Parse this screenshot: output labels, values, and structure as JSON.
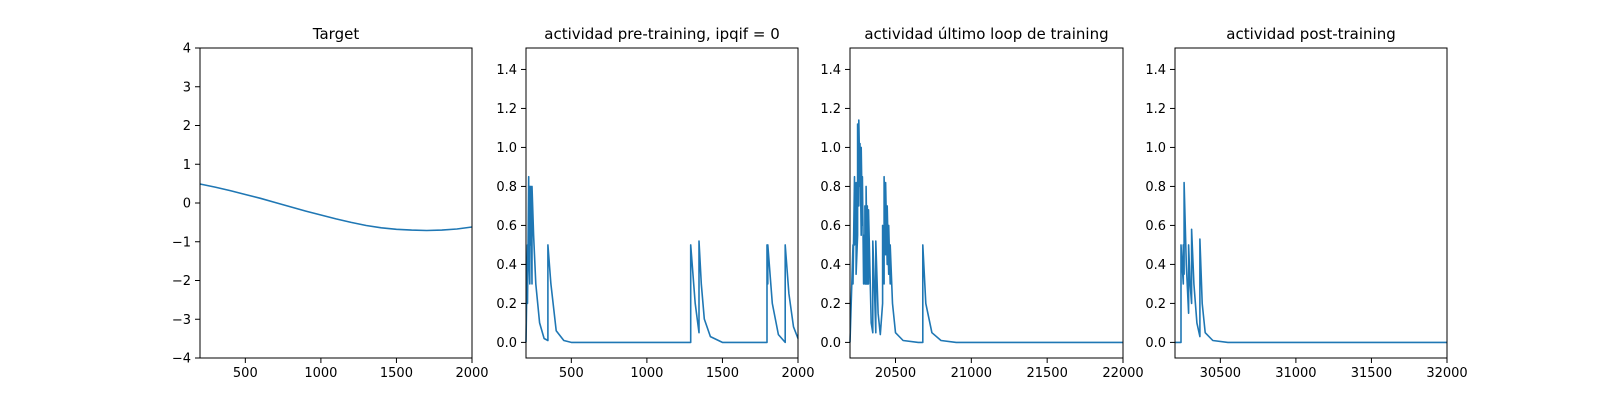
{
  "chart_data": [
    {
      "type": "line",
      "title": "Target",
      "xlabel": "",
      "ylabel": "",
      "xlim": [
        200,
        2000
      ],
      "ylim": [
        -4,
        4
      ],
      "xticks": [
        500,
        1000,
        1500,
        2000
      ],
      "xtick_labels": [
        "500",
        "1000",
        "1500",
        "2000"
      ],
      "yticks": [
        -4,
        -3,
        -2,
        -1,
        0,
        1,
        2,
        3,
        4
      ],
      "ytick_labels": [
        "−4",
        "−3",
        "−2",
        "−1",
        "0",
        "1",
        "2",
        "3",
        "4"
      ],
      "grid": false,
      "series": [
        {
          "color": "#1f77b4",
          "x": [
            200,
            300,
            400,
            500,
            600,
            700,
            800,
            900,
            1000,
            1100,
            1200,
            1300,
            1400,
            1500,
            1600,
            1700,
            1800,
            1900,
            2000
          ],
          "y": [
            0.49,
            0.41,
            0.32,
            0.22,
            0.12,
            0.01,
            -0.1,
            -0.21,
            -0.31,
            -0.41,
            -0.5,
            -0.58,
            -0.64,
            -0.68,
            -0.7,
            -0.71,
            -0.7,
            -0.67,
            -0.62
          ]
        }
      ]
    },
    {
      "type": "line",
      "title": "actividad pre-training, ipqif = 0",
      "xlabel": "",
      "ylabel": "",
      "xlim": [
        200,
        2000
      ],
      "ylim": [
        -0.08,
        1.51
      ],
      "xticks": [
        500,
        1000,
        1500,
        2000
      ],
      "xtick_labels": [
        "500",
        "1000",
        "1500",
        "2000"
      ],
      "yticks": [
        0,
        0.2,
        0.4,
        0.6,
        0.8,
        1.0,
        1.2,
        1.4
      ],
      "ytick_labels": [
        "0.0",
        "0.2",
        "0.4",
        "0.6",
        "0.8",
        "1.0",
        "1.2",
        "1.4"
      ],
      "grid": false,
      "series": [
        {
          "color": "#1f77b4",
          "x": [
            200,
            210,
            210,
            218,
            218,
            225,
            225,
            232,
            232,
            240,
            240,
            250,
            265,
            290,
            320,
            345,
            345,
            365,
            400,
            450,
            500,
            1290,
            1290,
            1320,
            1345,
            1345,
            1360,
            1380,
            1420,
            1500,
            1795,
            1795,
            1800,
            1800,
            1830,
            1870,
            1915,
            1915,
            1940,
            1970,
            2000
          ],
          "y": [
            0,
            0.5,
            0.2,
            0.85,
            0.5,
            0.3,
            0.8,
            0.5,
            0.8,
            0.3,
            0.8,
            0.55,
            0.3,
            0.1,
            0.02,
            0.01,
            0.5,
            0.3,
            0.06,
            0.01,
            0.0,
            0.0,
            0.5,
            0.2,
            0.05,
            0.52,
            0.3,
            0.12,
            0.03,
            0.0,
            0.0,
            0.5,
            0.3,
            0.5,
            0.2,
            0.04,
            0.0,
            0.5,
            0.25,
            0.08,
            0.02
          ]
        }
      ]
    },
    {
      "type": "line",
      "title": "actividad último loop de training",
      "xlabel": "",
      "ylabel": "",
      "xlim": [
        20200,
        22000
      ],
      "ylim": [
        -0.08,
        1.51
      ],
      "xticks": [
        20500,
        21000,
        21500,
        22000
      ],
      "xtick_labels": [
        "20500",
        "21000",
        "21500",
        "22000"
      ],
      "yticks": [
        0,
        0.2,
        0.4,
        0.6,
        0.8,
        1.0,
        1.2,
        1.4
      ],
      "ytick_labels": [
        "0.0",
        "0.2",
        "0.4",
        "0.6",
        "0.8",
        "1.0",
        "1.2",
        "1.4"
      ],
      "grid": false,
      "series": [
        {
          "color": "#1f77b4",
          "x": [
            20200,
            20220,
            20220,
            20230,
            20230,
            20240,
            20240,
            20250,
            20250,
            20258,
            20258,
            20266,
            20266,
            20274,
            20274,
            20282,
            20282,
            20290,
            20290,
            20298,
            20298,
            20306,
            20306,
            20314,
            20314,
            20322,
            20322,
            20340,
            20350,
            20350,
            20360,
            20370,
            20370,
            20385,
            20400,
            20415,
            20415,
            20425,
            20425,
            20435,
            20435,
            20445,
            20445,
            20455,
            20455,
            20465,
            20465,
            20480,
            20500,
            20550,
            20650,
            20680,
            20680,
            20700,
            20740,
            20800,
            20900,
            22000
          ],
          "y": [
            0.0,
            0.5,
            0.3,
            0.85,
            0.5,
            0.82,
            0.35,
            0.55,
            1.12,
            0.7,
            1.14,
            0.8,
            1.02,
            0.55,
            1.0,
            0.6,
            0.85,
            0.3,
            0.55,
            0.3,
            0.7,
            0.3,
            0.8,
            0.3,
            0.7,
            0.3,
            0.68,
            0.1,
            0.05,
            0.52,
            0.3,
            0.05,
            0.52,
            0.15,
            0.04,
            0.2,
            0.6,
            0.3,
            0.85,
            0.45,
            0.82,
            0.4,
            0.7,
            0.35,
            0.6,
            0.3,
            0.5,
            0.2,
            0.05,
            0.01,
            0.0,
            0.0,
            0.5,
            0.2,
            0.05,
            0.01,
            0.0,
            0.0
          ]
        }
      ]
    },
    {
      "type": "line",
      "title": "actividad post-training",
      "xlabel": "",
      "ylabel": "",
      "xlim": [
        30200,
        32000
      ],
      "ylim": [
        -0.08,
        1.51
      ],
      "xticks": [
        30500,
        31000,
        31500,
        32000
      ],
      "xtick_labels": [
        "30500",
        "31000",
        "31500",
        "32000"
      ],
      "yticks": [
        0,
        0.2,
        0.4,
        0.6,
        0.8,
        1.0,
        1.2,
        1.4
      ],
      "ytick_labels": [
        "0.0",
        "0.2",
        "0.4",
        "0.6",
        "0.8",
        "1.0",
        "1.2",
        "1.4"
      ],
      "grid": false,
      "series": [
        {
          "color": "#1f77b4",
          "x": [
            30200,
            30240,
            30240,
            30255,
            30255,
            30260,
            30260,
            30275,
            30290,
            30290,
            30300,
            30310,
            30310,
            30325,
            30345,
            30365,
            30365,
            30380,
            30400,
            30450,
            30550,
            32000
          ],
          "y": [
            0.0,
            0.0,
            0.5,
            0.3,
            0.5,
            0.35,
            0.82,
            0.4,
            0.15,
            0.5,
            0.3,
            0.2,
            0.58,
            0.3,
            0.1,
            0.03,
            0.53,
            0.2,
            0.05,
            0.01,
            0.0,
            0.0
          ]
        }
      ]
    }
  ]
}
